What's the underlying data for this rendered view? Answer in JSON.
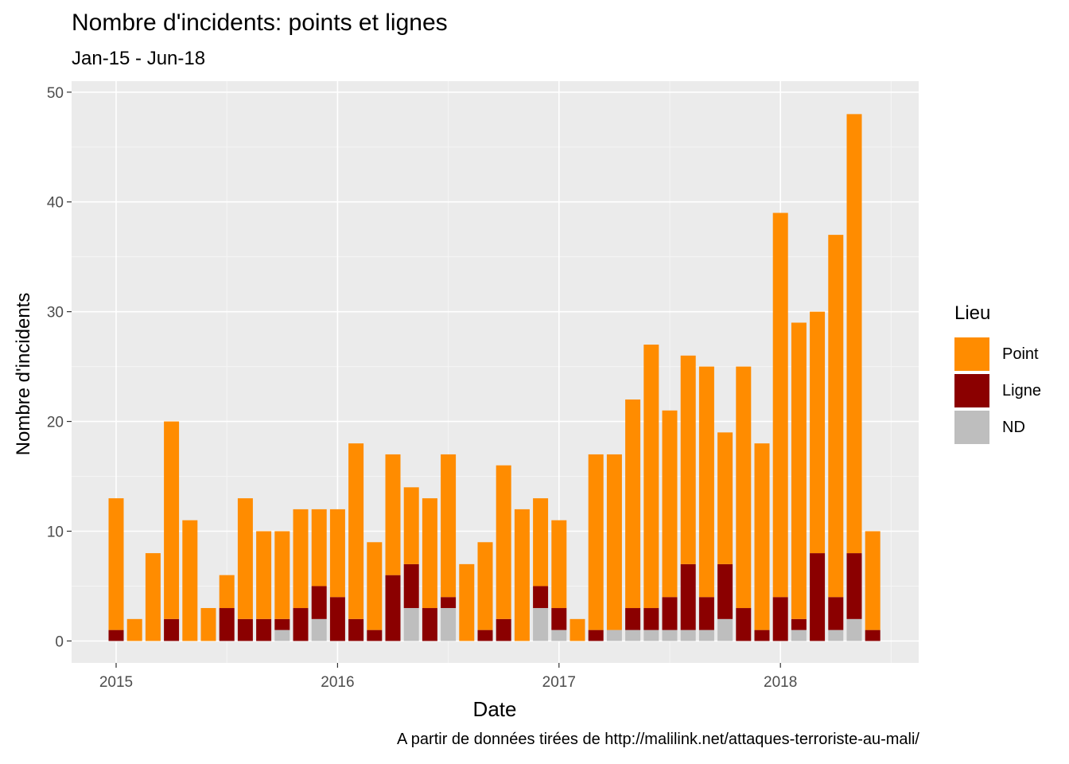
{
  "chart_data": {
    "type": "bar",
    "stacked": true,
    "title": "Nombre d'incidents: points et lignes",
    "subtitle": "Jan-15 - Jun-18",
    "caption": "A partir de données tirées de http://malilink.net/attaques-terroriste-au-mali/",
    "xlabel": "Date",
    "ylabel": "Nombre d'incidents",
    "ylim": [
      -2,
      51
    ],
    "y_ticks": [
      0,
      10,
      20,
      30,
      40,
      50
    ],
    "x_ticks": [
      "2015",
      "2016",
      "2017",
      "2018"
    ],
    "legend_title": "Lieu",
    "legend_position": "right",
    "categories": [
      "Jan-15",
      "Feb-15",
      "Mar-15",
      "Apr-15",
      "May-15",
      "Jun-15",
      "Jul-15",
      "Aug-15",
      "Sep-15",
      "Oct-15",
      "Nov-15",
      "Dec-15",
      "Jan-16",
      "Feb-16",
      "Mar-16",
      "Apr-16",
      "May-16",
      "Jun-16",
      "Jul-16",
      "Aug-16",
      "Sep-16",
      "Oct-16",
      "Nov-16",
      "Dec-16",
      "Jan-17",
      "Feb-17",
      "Mar-17",
      "Apr-17",
      "May-17",
      "Jun-17",
      "Jul-17",
      "Aug-17",
      "Sep-17",
      "Oct-17",
      "Nov-17",
      "Dec-17",
      "Jan-18",
      "Feb-18",
      "Mar-18",
      "Apr-18",
      "May-18",
      "Jun-18"
    ],
    "series": [
      {
        "name": "ND",
        "color": "#BEBEBE",
        "values": [
          0,
          0,
          0,
          0,
          0,
          0,
          0,
          0,
          0,
          1,
          0,
          2,
          0,
          0,
          0,
          0,
          3,
          0,
          3,
          0,
          0,
          0,
          0,
          3,
          1,
          0,
          0,
          1,
          1,
          1,
          1,
          1,
          1,
          2,
          0,
          0,
          0,
          1,
          0,
          1,
          2,
          0
        ]
      },
      {
        "name": "Ligne",
        "color": "#8B0000",
        "values": [
          1,
          0,
          0,
          2,
          0,
          0,
          3,
          2,
          2,
          1,
          3,
          3,
          4,
          2,
          1,
          6,
          4,
          3,
          1,
          0,
          1,
          2,
          0,
          2,
          2,
          0,
          1,
          0,
          2,
          2,
          3,
          6,
          3,
          5,
          3,
          1,
          4,
          1,
          8,
          3,
          6,
          1
        ]
      },
      {
        "name": "Point",
        "color": "#FF8C00",
        "values": [
          12,
          2,
          8,
          18,
          11,
          3,
          3,
          11,
          8,
          8,
          9,
          7,
          8,
          16,
          8,
          11,
          7,
          10,
          13,
          7,
          8,
          14,
          12,
          8,
          8,
          2,
          16,
          16,
          19,
          24,
          17,
          19,
          21,
          12,
          22,
          17,
          35,
          27,
          22,
          33,
          40,
          9
        ]
      }
    ],
    "legend_order": [
      "Point",
      "Ligne",
      "ND"
    ]
  }
}
